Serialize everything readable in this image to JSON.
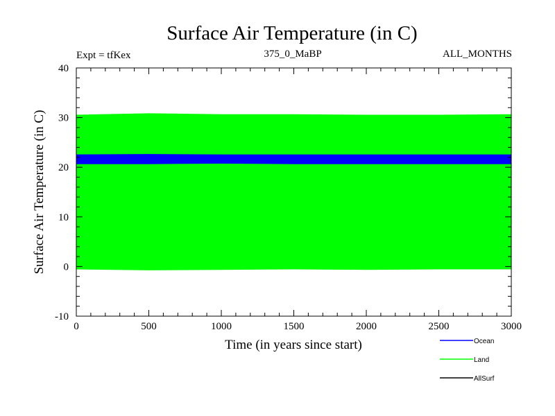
{
  "chart_data": {
    "type": "area",
    "title": "Surface Air Temperature (in C)",
    "header_left": "Expt = tfKex",
    "header_center": "375_0_MaBP",
    "header_right": "ALL_MONTHS",
    "xlabel": "Time (in years since start)",
    "ylabel": "Surface Air Temperature (in C)",
    "xlim": [
      0,
      3000
    ],
    "ylim": [
      -10,
      40
    ],
    "x_ticks": [
      "0",
      "500",
      "1000",
      "1500",
      "2000",
      "2500",
      "3000"
    ],
    "y_ticks": [
      "-10",
      "0",
      "10",
      "20",
      "30",
      "40"
    ],
    "legend_position": "bottom-right",
    "series": [
      {
        "name": "Ocean",
        "color": "#0000ff",
        "x": [
          0,
          500,
          1000,
          1500,
          2000,
          2500,
          3000
        ],
        "low": [
          20.7,
          20.7,
          20.8,
          20.7,
          20.7,
          20.7,
          20.7
        ],
        "high": [
          22.5,
          22.6,
          22.5,
          22.5,
          22.5,
          22.5,
          22.5
        ]
      },
      {
        "name": "Land",
        "color": "#00ff00",
        "x": [
          0,
          500,
          1000,
          1500,
          2000,
          2500,
          3000
        ],
        "low": [
          -0.5,
          -0.7,
          -0.6,
          -0.5,
          -0.6,
          -0.5,
          -0.5
        ],
        "high": [
          30.5,
          30.8,
          30.6,
          30.6,
          30.5,
          30.5,
          30.6
        ]
      },
      {
        "name": "AllSurf",
        "color": "#000000",
        "x": [],
        "low": [],
        "high": []
      }
    ]
  }
}
